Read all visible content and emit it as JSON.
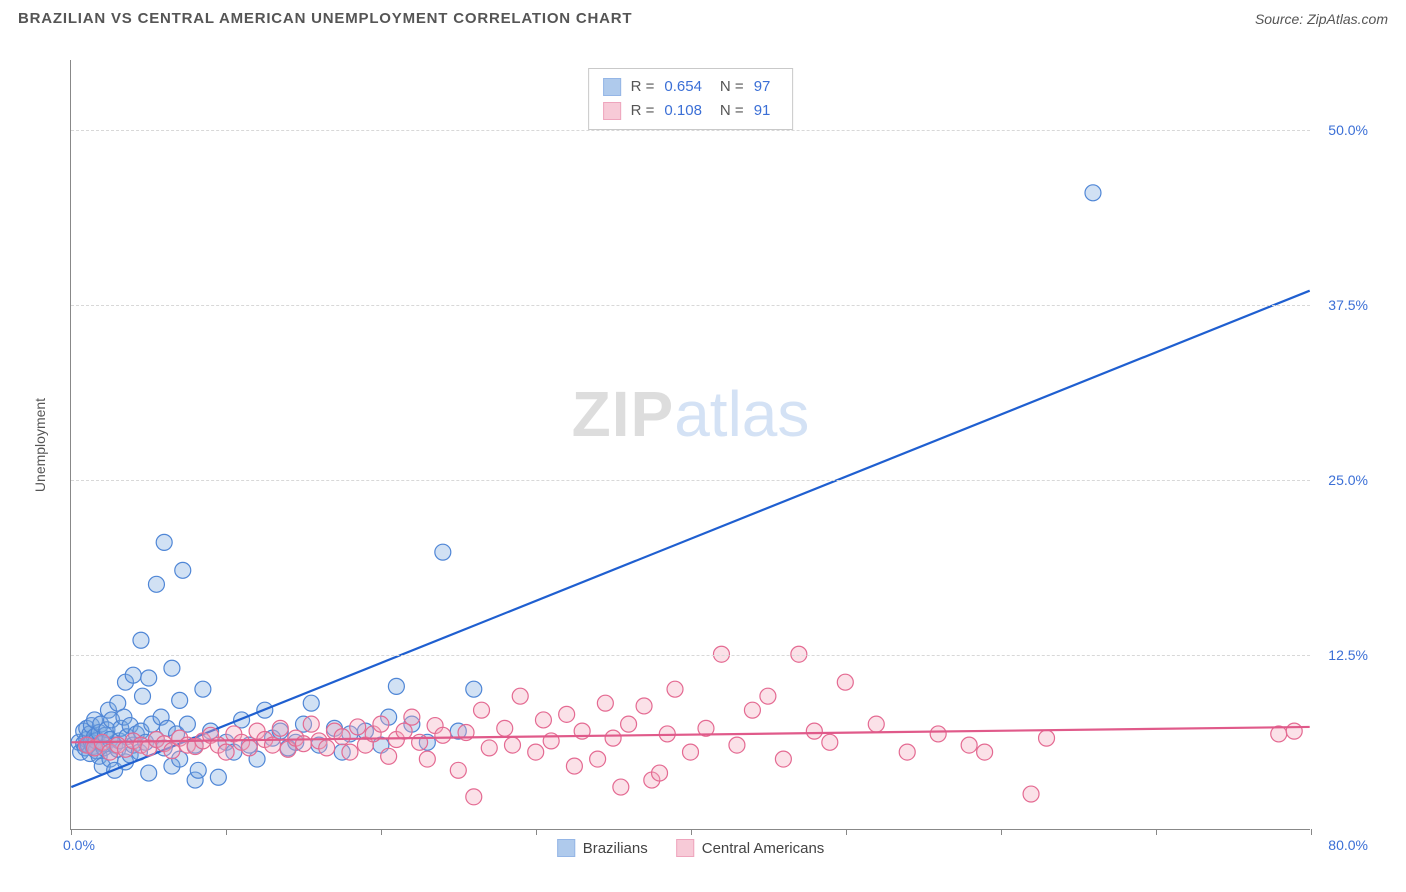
{
  "header": {
    "title": "BRAZILIAN VS CENTRAL AMERICAN UNEMPLOYMENT CORRELATION CHART",
    "source_label": "Source: ZipAtlas.com"
  },
  "watermark": {
    "part1": "ZIP",
    "part2": "atlas"
  },
  "chart": {
    "type": "scatter",
    "background_color": "#ffffff",
    "grid_color": "#d8d8d8",
    "axis_color": "#888888",
    "tick_label_color": "#3b6fd6",
    "axis_label_color": "#555555",
    "y_axis_label": "Unemployment",
    "xlim": [
      0,
      80
    ],
    "ylim": [
      0,
      55
    ],
    "x_ticks": [
      0,
      10,
      20,
      30,
      40,
      50,
      60,
      70,
      80
    ],
    "x_origin_label": "0.0%",
    "x_max_label": "80.0%",
    "y_ticks": [
      {
        "value": 12.5,
        "label": "12.5%"
      },
      {
        "value": 25.0,
        "label": "25.0%"
      },
      {
        "value": 37.5,
        "label": "37.5%"
      },
      {
        "value": 50.0,
        "label": "50.0%"
      }
    ],
    "marker_radius": 8,
    "marker_fill_opacity": 0.35,
    "marker_stroke_width": 1.2,
    "line_width": 2.2,
    "series": [
      {
        "id": "brazilians",
        "label": "Brazilians",
        "fill_color": "#7ba8e0",
        "stroke_color": "#4f86d6",
        "line_color": "#1f5fd0",
        "R": "0.654",
        "N": "97",
        "regression": {
          "x1": 0,
          "y1": 3.0,
          "x2": 80,
          "y2": 38.5
        },
        "points": [
          [
            0.5,
            6.2
          ],
          [
            0.6,
            5.5
          ],
          [
            0.8,
            7.0
          ],
          [
            0.8,
            6.1
          ],
          [
            0.9,
            5.8
          ],
          [
            1.0,
            6.4
          ],
          [
            1.0,
            7.2
          ],
          [
            1.1,
            6.0
          ],
          [
            1.2,
            5.4
          ],
          [
            1.2,
            6.8
          ],
          [
            1.3,
            7.4
          ],
          [
            1.3,
            6.2
          ],
          [
            1.4,
            5.9
          ],
          [
            1.5,
            6.6
          ],
          [
            1.5,
            7.8
          ],
          [
            1.6,
            5.6
          ],
          [
            1.6,
            6.3
          ],
          [
            1.8,
            6.9
          ],
          [
            1.8,
            5.2
          ],
          [
            1.9,
            7.5
          ],
          [
            2.0,
            6.1
          ],
          [
            2.0,
            4.5
          ],
          [
            2.1,
            5.8
          ],
          [
            2.2,
            6.7
          ],
          [
            2.3,
            7.1
          ],
          [
            2.4,
            8.5
          ],
          [
            2.5,
            5.0
          ],
          [
            2.5,
            6.4
          ],
          [
            2.6,
            7.8
          ],
          [
            2.8,
            6.0
          ],
          [
            2.8,
            4.2
          ],
          [
            3.0,
            5.7
          ],
          [
            3.0,
            9.0
          ],
          [
            3.1,
            6.3
          ],
          [
            3.2,
            7.2
          ],
          [
            3.4,
            8.0
          ],
          [
            3.5,
            10.5
          ],
          [
            3.5,
            4.8
          ],
          [
            3.6,
            6.6
          ],
          [
            3.8,
            5.3
          ],
          [
            3.8,
            7.4
          ],
          [
            4.0,
            6.0
          ],
          [
            4.0,
            11.0
          ],
          [
            4.2,
            6.8
          ],
          [
            4.4,
            5.5
          ],
          [
            4.5,
            7.0
          ],
          [
            4.5,
            13.5
          ],
          [
            4.6,
            9.5
          ],
          [
            4.8,
            6.2
          ],
          [
            5.0,
            4.0
          ],
          [
            5.0,
            10.8
          ],
          [
            5.2,
            7.5
          ],
          [
            5.5,
            6.4
          ],
          [
            5.5,
            17.5
          ],
          [
            5.8,
            8.0
          ],
          [
            6.0,
            5.8
          ],
          [
            6.0,
            20.5
          ],
          [
            6.2,
            7.2
          ],
          [
            6.5,
            11.5
          ],
          [
            6.5,
            4.5
          ],
          [
            6.8,
            6.8
          ],
          [
            7.0,
            5.0
          ],
          [
            7.0,
            9.2
          ],
          [
            7.2,
            18.5
          ],
          [
            7.5,
            7.5
          ],
          [
            8.0,
            6.0
          ],
          [
            8.0,
            3.5
          ],
          [
            8.2,
            4.2
          ],
          [
            8.5,
            10.0
          ],
          [
            9.0,
            7.0
          ],
          [
            9.5,
            3.7
          ],
          [
            10.0,
            6.2
          ],
          [
            10.5,
            5.5
          ],
          [
            11.0,
            7.8
          ],
          [
            11.5,
            6.0
          ],
          [
            12.0,
            5.0
          ],
          [
            12.5,
            8.5
          ],
          [
            13.0,
            6.5
          ],
          [
            13.5,
            7.0
          ],
          [
            14.0,
            5.8
          ],
          [
            14.5,
            6.2
          ],
          [
            15.0,
            7.5
          ],
          [
            15.5,
            9.0
          ],
          [
            16.0,
            6.0
          ],
          [
            17.0,
            7.2
          ],
          [
            17.5,
            5.5
          ],
          [
            18.0,
            6.8
          ],
          [
            19.0,
            7.0
          ],
          [
            20.0,
            6.0
          ],
          [
            20.5,
            8.0
          ],
          [
            21.0,
            10.2
          ],
          [
            22.0,
            7.5
          ],
          [
            23.0,
            6.2
          ],
          [
            24.0,
            19.8
          ],
          [
            25.0,
            7.0
          ],
          [
            26.0,
            10.0
          ],
          [
            66.0,
            45.5
          ]
        ]
      },
      {
        "id": "central_americans",
        "label": "Central Americans",
        "fill_color": "#f3a8bd",
        "stroke_color": "#e46a92",
        "line_color": "#e05a8a",
        "R": "0.108",
        "N": "91",
        "regression": {
          "x1": 0,
          "y1": 6.2,
          "x2": 80,
          "y2": 7.3
        },
        "points": [
          [
            1.0,
            6.0
          ],
          [
            1.5,
            5.8
          ],
          [
            2.0,
            6.2
          ],
          [
            2.5,
            5.5
          ],
          [
            3.0,
            6.0
          ],
          [
            3.5,
            5.7
          ],
          [
            4.0,
            6.3
          ],
          [
            4.5,
            6.0
          ],
          [
            5.0,
            5.8
          ],
          [
            5.5,
            6.4
          ],
          [
            6.0,
            6.1
          ],
          [
            6.5,
            5.6
          ],
          [
            7.0,
            6.5
          ],
          [
            7.5,
            6.0
          ],
          [
            8.0,
            5.9
          ],
          [
            8.5,
            6.3
          ],
          [
            9.0,
            6.7
          ],
          [
            9.5,
            6.0
          ],
          [
            10.0,
            5.5
          ],
          [
            10.5,
            6.8
          ],
          [
            11.0,
            6.2
          ],
          [
            11.5,
            5.8
          ],
          [
            12.0,
            7.0
          ],
          [
            12.5,
            6.4
          ],
          [
            13.0,
            6.0
          ],
          [
            13.5,
            7.2
          ],
          [
            14.0,
            5.7
          ],
          [
            14.5,
            6.5
          ],
          [
            15.0,
            6.1
          ],
          [
            15.5,
            7.5
          ],
          [
            16.0,
            6.3
          ],
          [
            16.5,
            5.8
          ],
          [
            17.0,
            7.0
          ],
          [
            17.5,
            6.6
          ],
          [
            18.0,
            5.5
          ],
          [
            18.5,
            7.3
          ],
          [
            19.0,
            6.0
          ],
          [
            19.5,
            6.8
          ],
          [
            20.0,
            7.5
          ],
          [
            20.5,
            5.2
          ],
          [
            21.0,
            6.4
          ],
          [
            21.5,
            7.0
          ],
          [
            22.0,
            8.0
          ],
          [
            22.5,
            6.2
          ],
          [
            23.0,
            5.0
          ],
          [
            23.5,
            7.4
          ],
          [
            24.0,
            6.7
          ],
          [
            25.0,
            4.2
          ],
          [
            25.5,
            6.9
          ],
          [
            26.0,
            2.3
          ],
          [
            26.5,
            8.5
          ],
          [
            27.0,
            5.8
          ],
          [
            28.0,
            7.2
          ],
          [
            28.5,
            6.0
          ],
          [
            29.0,
            9.5
          ],
          [
            30.0,
            5.5
          ],
          [
            30.5,
            7.8
          ],
          [
            31.0,
            6.3
          ],
          [
            32.0,
            8.2
          ],
          [
            32.5,
            4.5
          ],
          [
            33.0,
            7.0
          ],
          [
            34.0,
            5.0
          ],
          [
            34.5,
            9.0
          ],
          [
            35.0,
            6.5
          ],
          [
            35.5,
            3.0
          ],
          [
            36.0,
            7.5
          ],
          [
            37.0,
            8.8
          ],
          [
            37.5,
            3.5
          ],
          [
            38.0,
            4.0
          ],
          [
            38.5,
            6.8
          ],
          [
            39.0,
            10.0
          ],
          [
            40.0,
            5.5
          ],
          [
            41.0,
            7.2
          ],
          [
            42.0,
            12.5
          ],
          [
            43.0,
            6.0
          ],
          [
            44.0,
            8.5
          ],
          [
            45.0,
            9.5
          ],
          [
            46.0,
            5.0
          ],
          [
            47.0,
            12.5
          ],
          [
            48.0,
            7.0
          ],
          [
            49.0,
            6.2
          ],
          [
            50.0,
            10.5
          ],
          [
            52.0,
            7.5
          ],
          [
            54.0,
            5.5
          ],
          [
            56.0,
            6.8
          ],
          [
            58.0,
            6.0
          ],
          [
            59.0,
            5.5
          ],
          [
            62.0,
            2.5
          ],
          [
            63.0,
            6.5
          ],
          [
            78.0,
            6.8
          ],
          [
            79.0,
            7.0
          ]
        ]
      }
    ],
    "legend_top": {
      "R_label": "R =",
      "N_label": "N ="
    }
  }
}
